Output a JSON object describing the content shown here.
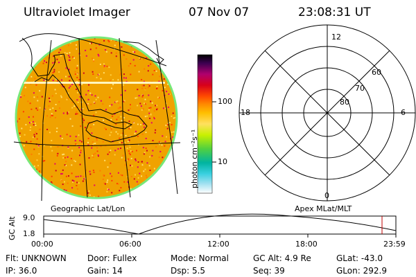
{
  "header": {
    "title": "Ultraviolet Imager",
    "date": "07 Nov 07",
    "time": "23:08:31 UT"
  },
  "left_panel": {
    "caption": "Geographic Lat/Lon"
  },
  "colorbar": {
    "unit_label": "photon cm⁻²s⁻¹",
    "ticks": [
      "100",
      "10"
    ],
    "colors": [
      "#000000",
      "#3a0050",
      "#b0006e",
      "#d8001a",
      "#ff4a00",
      "#ff8c00",
      "#ffbf00",
      "#ffe060",
      "#c8f000",
      "#50d040",
      "#00b4a0",
      "#3ad0e0",
      "#a0e0f0",
      "#ffffff"
    ]
  },
  "polar_plot": {
    "caption": "Apex MLat/MLT",
    "mlt_labels": [
      "12",
      "6",
      "0",
      "18"
    ],
    "lat_labels": [
      "60",
      "70",
      "80"
    ]
  },
  "timeline": {
    "y_axis_title": "GC Alt",
    "y_ticks": [
      "9.0",
      "1.8"
    ],
    "x_ticks": [
      "00:00",
      "06:00",
      "12:00",
      "18:00",
      "23:59"
    ],
    "marker_time": "23:08"
  },
  "info": {
    "row1": [
      {
        "key": "Flt:",
        "value": "UNKNOWN"
      },
      {
        "key": "Door:",
        "value": "Fullex"
      },
      {
        "key": "Mode:",
        "value": "Normal"
      },
      {
        "key": "GC Alt:",
        "value": "4.9 Re"
      },
      {
        "key": "GLat:",
        "value": "-43.0"
      }
    ],
    "row2": [
      {
        "key": "IP:",
        "value": "36.0"
      },
      {
        "key": "Gain:",
        "value": "14"
      },
      {
        "key": "Dsp:",
        "value": "5.5"
      },
      {
        "key": "Seq:",
        "value": "39"
      },
      {
        "key": "GLon:",
        "value": "292.9"
      }
    ]
  }
}
